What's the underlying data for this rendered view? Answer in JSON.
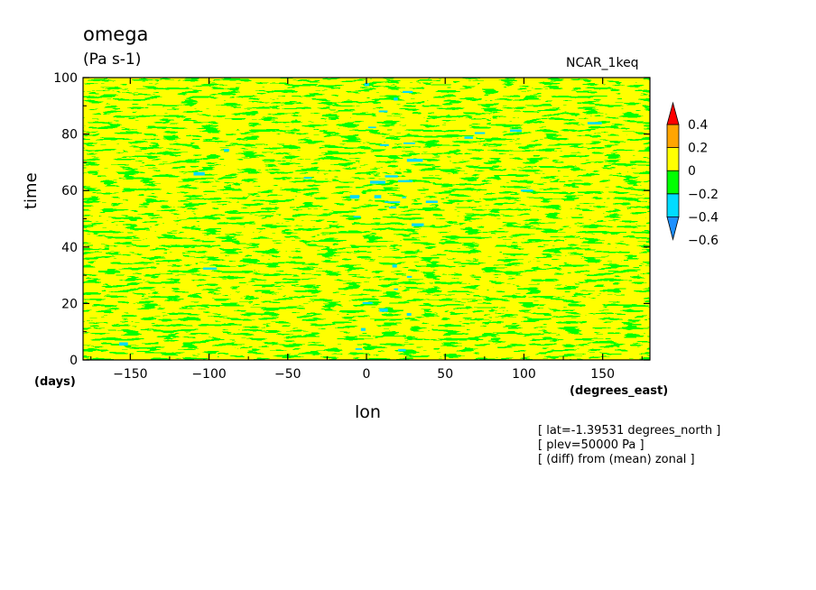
{
  "chart_data": {
    "type": "heatmap",
    "title": "omega",
    "subtitle": "(Pa s-1)",
    "source_label": "NCAR_1keq",
    "xlabel": "lon",
    "xunit": "(degrees_east)",
    "ylabel": "time",
    "yunit": "(days)",
    "xlim": [
      -180,
      180
    ],
    "ylim": [
      0,
      100
    ],
    "xticks": [
      -150,
      -100,
      -50,
      0,
      50,
      100,
      150
    ],
    "yticks": [
      0,
      20,
      40,
      60,
      80,
      100
    ],
    "grid": false,
    "legend_placement": "right",
    "colorbar": {
      "levels": [
        -0.6,
        -0.4,
        -0.2,
        0,
        0.2,
        0.4
      ],
      "tick_labels": [
        "0.4",
        "0.2",
        "0",
        "−0.2",
        "−0.4",
        "−0.6"
      ],
      "colors": [
        "#1e90ff",
        "#00dcff",
        "#00ff00",
        "#ffff00",
        "#ffa500",
        "#ff0000"
      ],
      "extend": "both"
    },
    "field_description_values": {
      "dominant_range": [
        -0.2,
        0.2
      ],
      "min_approx": -0.4,
      "max_approx": 0.2
    },
    "annotations": [
      "[ lat=-1.39531 degrees_north ]",
      "[ plev=50000 Pa ]",
      "[ (diff) from (mean) zonal ]"
    ]
  }
}
